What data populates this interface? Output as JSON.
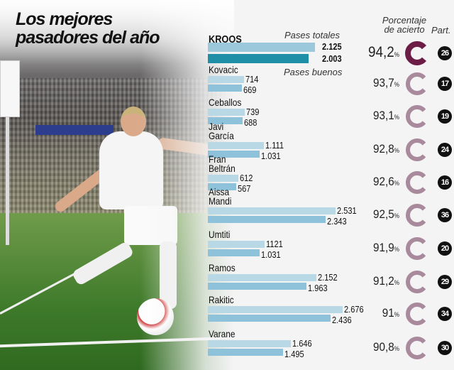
{
  "title": "Los mejores pasadores del año",
  "headers": {
    "total": "Pases totales",
    "good": "Pases buenos",
    "pct": "Porcentaje\nde acierto",
    "matches": "Part."
  },
  "colors": {
    "total_bar": "#b8d8e6",
    "good_bar": "#8ec2da",
    "highlight_total": "#9cc8dc",
    "highlight_good": "#1f8fa8",
    "highlight_ring": "#6b1d45",
    "ring": "#a88a9c"
  },
  "chart_data": {
    "type": "bar",
    "orientation": "horizontal",
    "categories": [
      "KROOS",
      "Kovacic",
      "Ceballos",
      "Javi\nGarcía",
      "Fran\nBeltrán",
      "Aissa\nMandi",
      "Umtiti",
      "Ramos",
      "Rakitic",
      "Varane"
    ],
    "series": [
      {
        "name": "Pases totales",
        "values": [
          2125,
          714,
          739,
          1111,
          612,
          2531,
          1121,
          2152,
          2676,
          1646
        ],
        "labels": [
          "2.125",
          "714",
          "739",
          "1.111",
          "612",
          "2.531",
          "1121",
          "2.152",
          "2.676",
          "1.646"
        ]
      },
      {
        "name": "Pases buenos",
        "values": [
          2003,
          669,
          688,
          1031,
          567,
          2343,
          1031,
          1963,
          2436,
          1495
        ],
        "labels": [
          "2.003",
          "669",
          "688",
          "1.031",
          "567",
          "2.343",
          "1.031",
          "1.963",
          "2.436",
          "1.495"
        ]
      }
    ],
    "porcentaje_de_acierto": [
      "94,2",
      "93,7",
      "93,1",
      "92,8",
      "92,6",
      "92,5",
      "91,9",
      "91,2",
      "91",
      "90,8"
    ],
    "pct_unit": "%",
    "partidos": [
      "26",
      "17",
      "19",
      "24",
      "16",
      "36",
      "20",
      "29",
      "34",
      "30"
    ]
  }
}
